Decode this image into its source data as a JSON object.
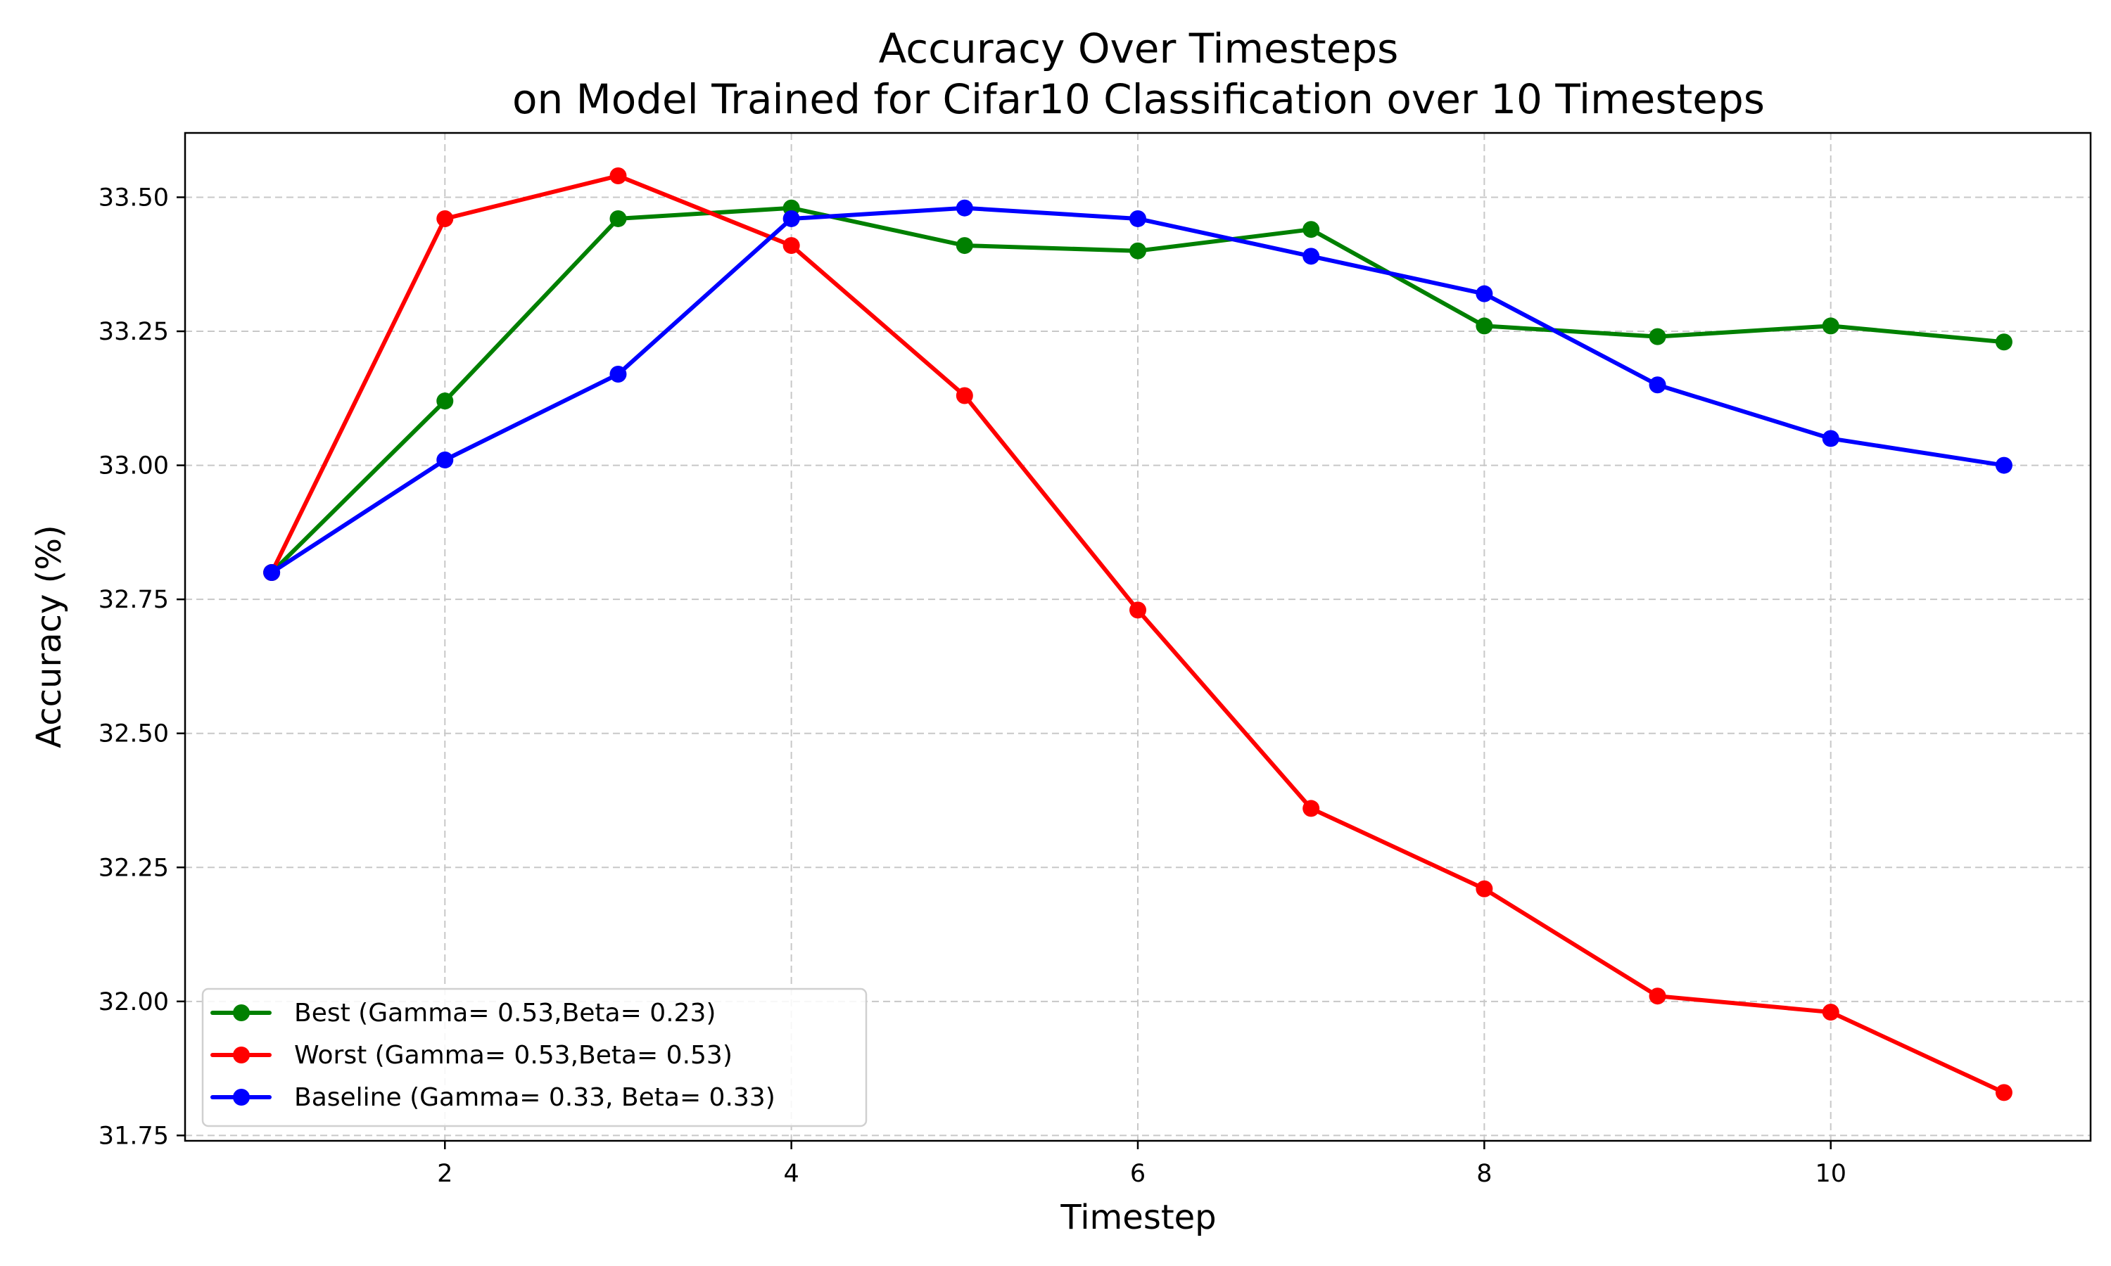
{
  "chart_data": {
    "type": "line",
    "title": "Accuracy Over Timesteps",
    "subtitle": "on Model Trained for Cifar10 Classification over 10 Timesteps",
    "xlabel": "Timestep",
    "ylabel": "Accuracy (%)",
    "x": [
      1,
      2,
      3,
      4,
      5,
      6,
      7,
      8,
      9,
      10,
      11
    ],
    "xlim": [
      0.5,
      11.5
    ],
    "ylim": [
      31.74,
      33.62
    ],
    "xticks": [
      2,
      4,
      6,
      8,
      10
    ],
    "yticks": [
      31.75,
      32.0,
      32.25,
      32.5,
      32.75,
      33.0,
      33.25,
      33.5
    ],
    "xtick_labels": [
      "2",
      "4",
      "6",
      "8",
      "10"
    ],
    "ytick_labels": [
      "31.75",
      "32.00",
      "32.25",
      "32.50",
      "32.75",
      "33.00",
      "33.25",
      "33.50"
    ],
    "grid": true,
    "legend_position": "lower-left",
    "series": [
      {
        "name": "Best (Gamma= 0.53,Beta= 0.23)",
        "color": "#008000",
        "values": [
          32.8,
          33.12,
          33.46,
          33.48,
          33.41,
          33.4,
          33.44,
          33.26,
          33.24,
          33.26,
          33.23
        ]
      },
      {
        "name": "Worst (Gamma= 0.53,Beta= 0.53)",
        "color": "#ff0000",
        "values": [
          32.8,
          33.46,
          33.54,
          33.41,
          33.13,
          32.73,
          32.36,
          32.21,
          32.01,
          31.98,
          31.83
        ]
      },
      {
        "name": "Baseline (Gamma= 0.33, Beta= 0.33)",
        "color": "#0000ff",
        "values": [
          32.8,
          33.01,
          33.17,
          33.46,
          33.48,
          33.46,
          33.39,
          33.32,
          33.15,
          33.05,
          33.0
        ]
      }
    ]
  }
}
